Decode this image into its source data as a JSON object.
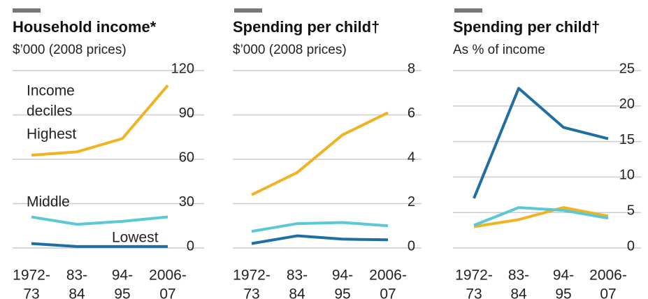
{
  "chart_data": [
    {
      "type": "line",
      "title": "Household income*",
      "subtitle": "$’000 (2008 prices)",
      "legend_title": [
        "Income",
        "deciles"
      ],
      "categories": [
        [
          "1972-",
          "73"
        ],
        [
          "83-",
          "84"
        ],
        [
          "94-",
          "95"
        ],
        [
          "2006-",
          "07"
        ]
      ],
      "ylim": [
        0,
        120
      ],
      "yticks": [
        0,
        30,
        60,
        90,
        120
      ],
      "grid": true,
      "series": [
        {
          "name": "Highest",
          "color": "#f0b323",
          "values": [
            62.8,
            65,
            74,
            110
          ]
        },
        {
          "name": "Middle",
          "color": "#5bc8d6",
          "values": [
            21,
            16,
            18,
            21
          ]
        },
        {
          "name": "Lowest",
          "color": "#1f6fa5",
          "values": [
            3,
            1,
            1,
            1
          ]
        }
      ]
    },
    {
      "type": "line",
      "title": "Spending per child†",
      "subtitle": "$’000 (2008 prices)",
      "categories": [
        [
          "1972-",
          "73"
        ],
        [
          "83-",
          "84"
        ],
        [
          "94-",
          "95"
        ],
        [
          "2006-",
          "07"
        ]
      ],
      "ylim": [
        0,
        8
      ],
      "yticks": [
        0,
        2,
        4,
        6,
        8
      ],
      "grid": true,
      "series": [
        {
          "color": "#f0b323",
          "values": [
            2.4,
            3.4,
            5.1,
            6.1
          ]
        },
        {
          "color": "#5bc8d6",
          "values": [
            0.75,
            1.1,
            1.15,
            1.0
          ]
        },
        {
          "color": "#1f6fa5",
          "values": [
            0.2,
            0.55,
            0.4,
            0.37
          ]
        }
      ]
    },
    {
      "type": "line",
      "title": "Spending per child†",
      "subtitle": "As % of income",
      "categories": [
        [
          "1972-",
          "73"
        ],
        [
          "83-",
          "84"
        ],
        [
          "94-",
          "95"
        ],
        [
          "2006-",
          "07"
        ]
      ],
      "ylim": [
        0,
        25
      ],
      "yticks": [
        0,
        5,
        10,
        15,
        20,
        25
      ],
      "grid": true,
      "series": [
        {
          "color": "#f0b323",
          "values": [
            3,
            4,
            5.7,
            4.5
          ]
        },
        {
          "color": "#5bc8d6",
          "values": [
            3.2,
            5.7,
            5.3,
            4.2
          ]
        },
        {
          "color": "#1f6fa5",
          "values": [
            7,
            22.5,
            17,
            15.4
          ]
        }
      ]
    }
  ]
}
